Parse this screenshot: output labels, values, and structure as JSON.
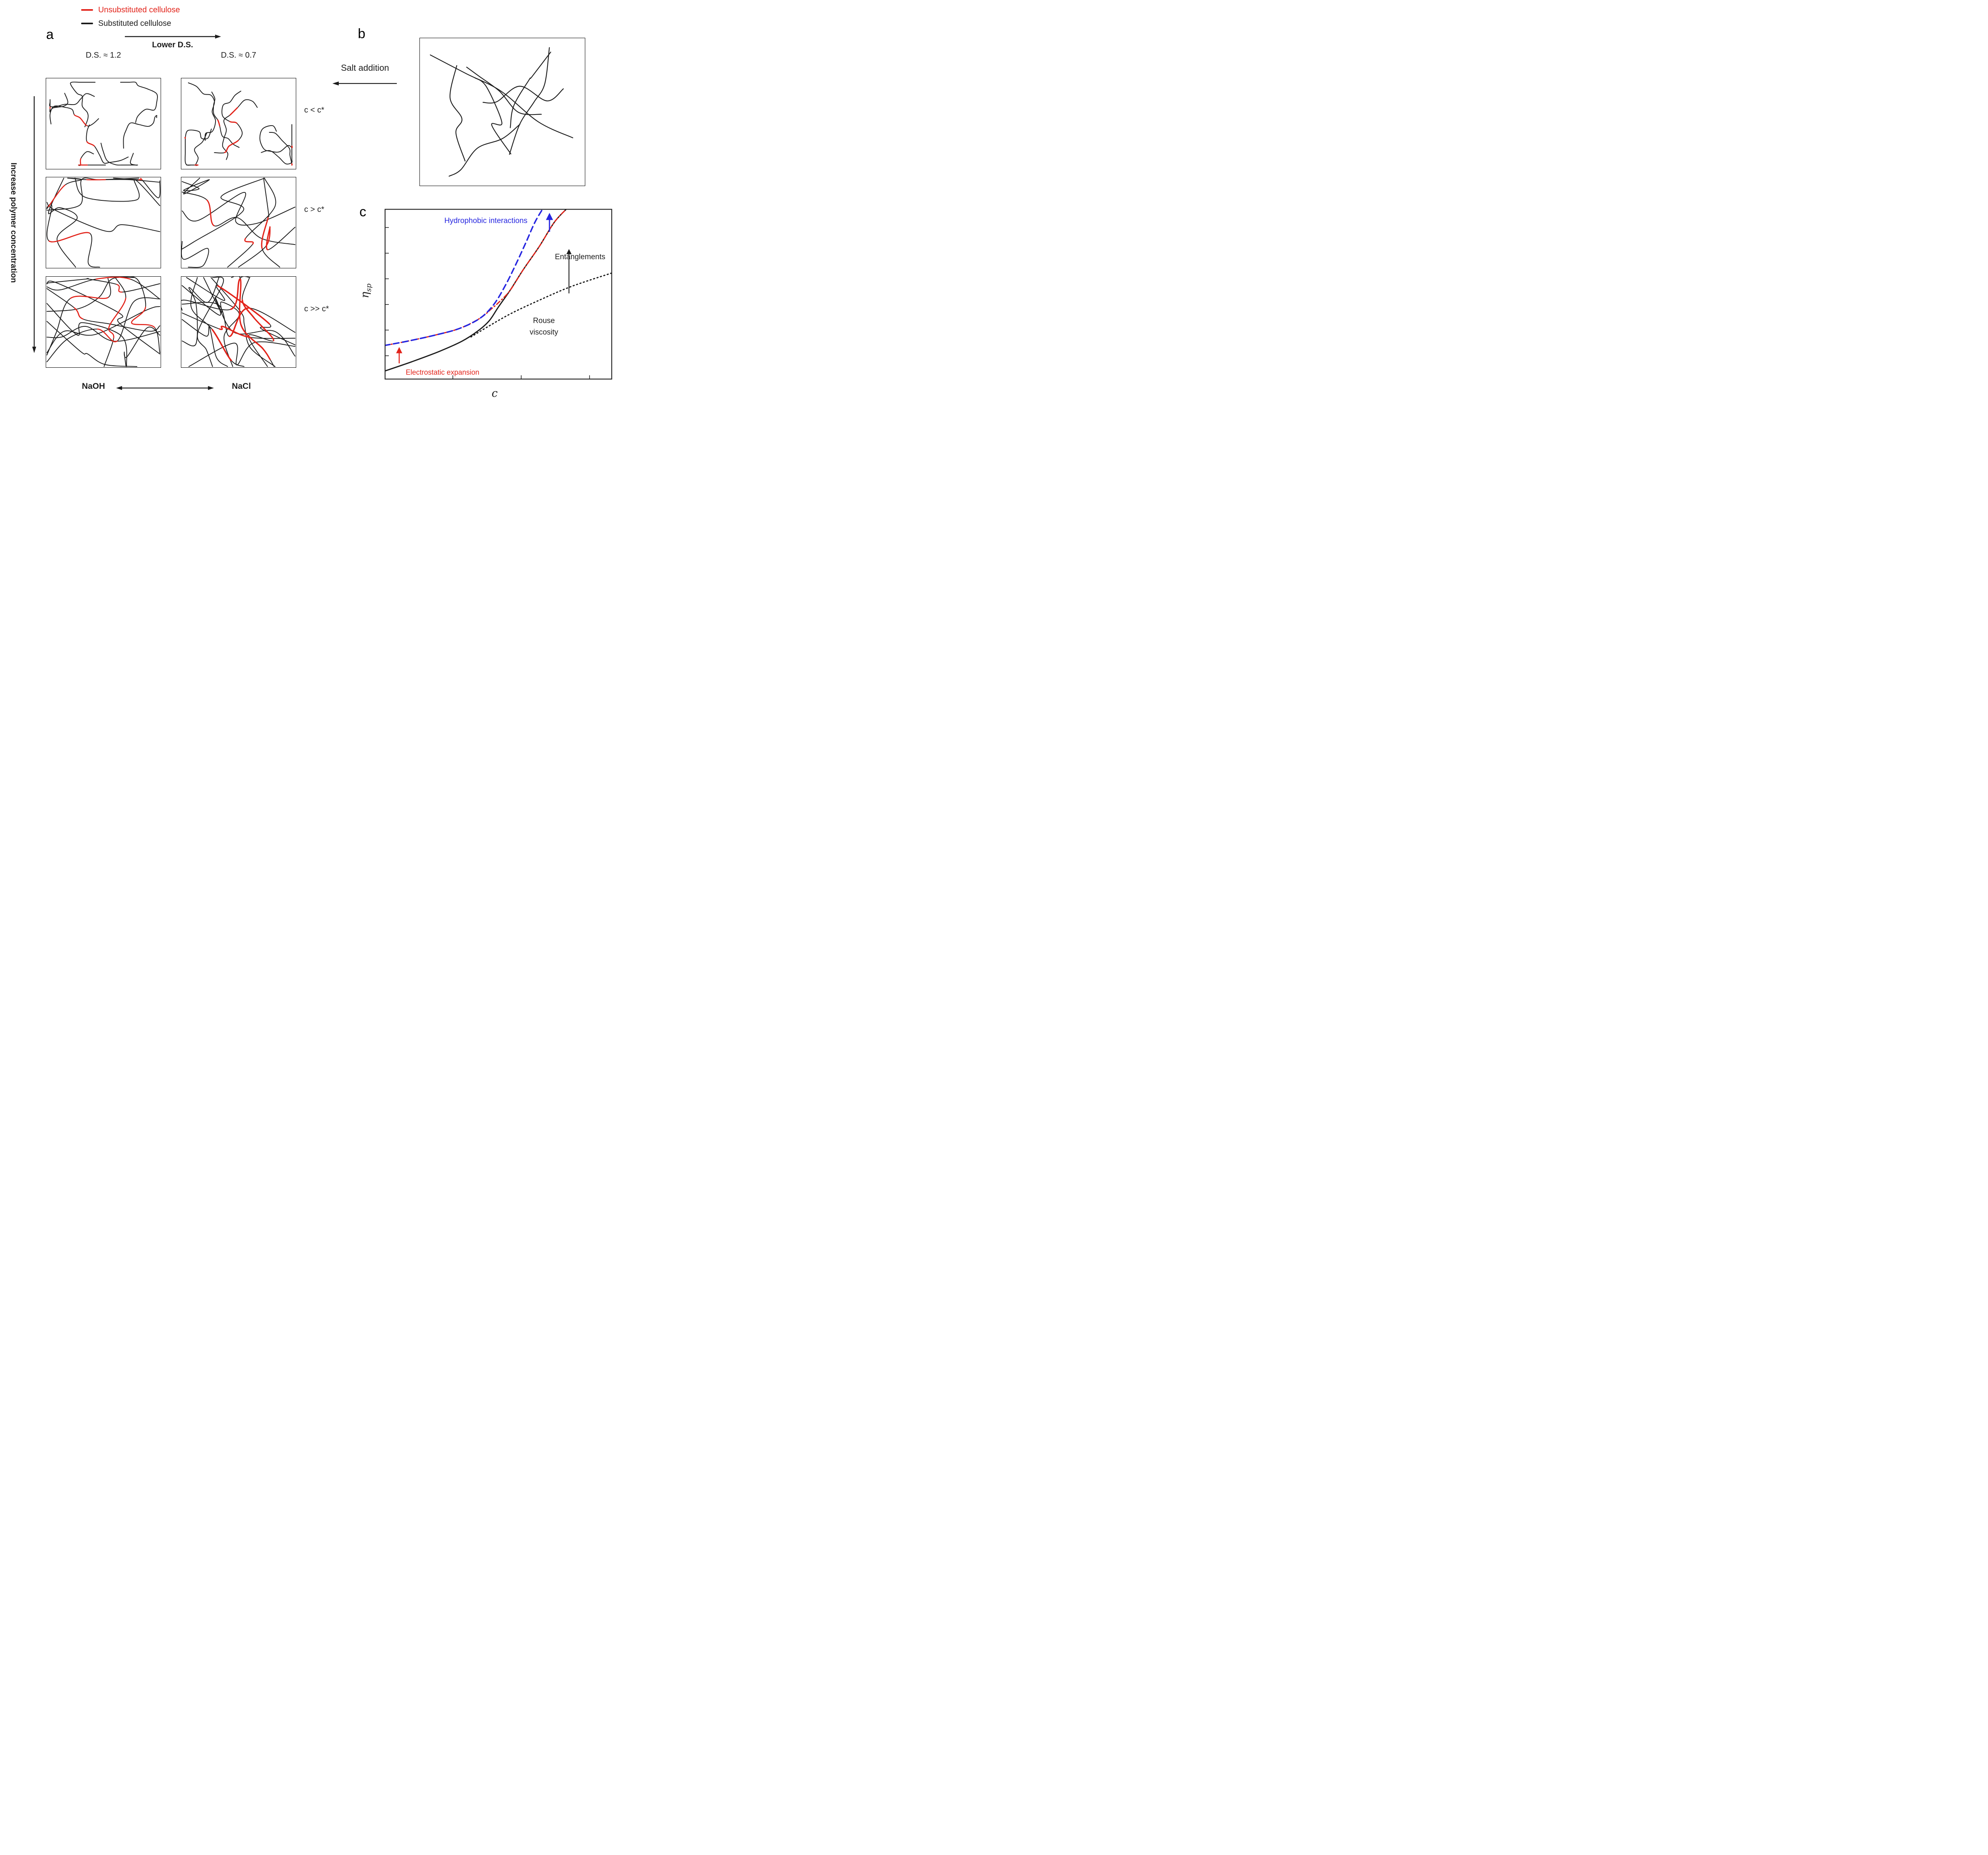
{
  "colors": {
    "red": "#e2231a",
    "black": "#1c1c1c",
    "blue": "#2626e0"
  },
  "legend": {
    "items": [
      {
        "label": "Unsubstituted cellulose",
        "color": "#e2231a"
      },
      {
        "label": "Substituted cellulose",
        "color": "#1c1c1c"
      }
    ]
  },
  "panel_a": {
    "label": "a",
    "arrow_label": "Lower D.S.",
    "col_headers": [
      "D.S. ≈ 1.2",
      "D.S. ≈ 0.7"
    ],
    "row_labels": [
      "c < c*",
      "c > c*",
      "c >> c*"
    ],
    "left_axis_label": "Increase polymer concentration",
    "bottom_labels": [
      "NaOH",
      "NaCl"
    ],
    "boxes": [
      {
        "name": "high-ds-dilute",
        "type": "coils",
        "chains": 9,
        "red_segments": 7,
        "seed": 14
      },
      {
        "name": "low-ds-dilute",
        "type": "coils",
        "chains": 9,
        "red_segments": 9,
        "seed": 83
      },
      {
        "name": "high-ds-semidilute",
        "type": "network",
        "chains": 8,
        "red_segments": 5,
        "seed": 27
      },
      {
        "name": "low-ds-semidilute",
        "type": "network",
        "chains": 8,
        "red_segments": 7,
        "seed": 61
      },
      {
        "name": "high-ds-concentrated",
        "type": "network",
        "chains": 14,
        "red_segments": 10,
        "seed": 45
      },
      {
        "name": "low-ds-concentrated",
        "type": "network",
        "chains": 14,
        "red_segments": 13,
        "seed": 52,
        "cluster": true
      }
    ]
  },
  "panel_b": {
    "label": "b",
    "annotation": "Salt addition",
    "chains": 8,
    "seed": 7
  },
  "panel_c": {
    "label": "c",
    "ylabel": "η",
    "ylabel_sub": "sp",
    "xlabel": "c",
    "labels": {
      "hydrophobic": "Hydrophobic interactions",
      "entanglements": "Entanglements",
      "rouse_1": "Rouse",
      "rouse_2": "viscosity",
      "electrostatic": "Electrostatic expansion"
    }
  },
  "chart_data": {
    "type": "line",
    "title": "",
    "xlabel": "c",
    "ylabel": "η_sp",
    "axes": "schematic, no numeric tick labels; axis ranges normalized 0-1",
    "grid": false,
    "legend_position": "none",
    "annotations": [
      "Hydrophobic interactions",
      "Entanglements",
      "Rouse viscosity",
      "Electrostatic expansion"
    ],
    "series": [
      {
        "name": "Rouse viscosity (dotted extrapolation)",
        "style": "dotted",
        "color": "#1c1c1c",
        "x": [
          0.38,
          0.46,
          0.56,
          0.68,
          0.82,
          1.0
        ],
        "y": [
          0.25,
          0.315,
          0.39,
          0.465,
          0.545,
          0.625
        ]
      },
      {
        "name": "Solid curve (with salt, entangled upturn)",
        "style": "solid",
        "color": "#1c1c1c",
        "x": [
          0,
          0.12,
          0.24,
          0.34,
          0.41,
          0.46,
          0.5,
          0.55,
          0.61,
          0.68,
          0.745,
          0.8
        ],
        "y": [
          0.05,
          0.105,
          0.165,
          0.225,
          0.285,
          0.345,
          0.425,
          0.52,
          0.645,
          0.78,
          0.92,
          1.0
        ]
      },
      {
        "name": "Electrostatic expansion (red dash-dot)",
        "style": "dash-dot",
        "color": "#e2231a",
        "x": [
          0,
          0.1,
          0.22,
          0.33,
          0.42,
          0.47,
          0.5,
          0.55,
          0.61,
          0.68,
          0.745,
          0.8
        ],
        "y": [
          0.2,
          0.225,
          0.26,
          0.3,
          0.36,
          0.415,
          0.45,
          0.52,
          0.645,
          0.78,
          0.92,
          1.0
        ]
      },
      {
        "name": "Hydrophobic interactions (blue dashed)",
        "style": "dashed",
        "color": "#2626e0",
        "x": [
          0,
          0.1,
          0.22,
          0.33,
          0.42,
          0.48,
          0.53,
          0.575,
          0.62,
          0.66,
          0.695
        ],
        "y": [
          0.2,
          0.225,
          0.26,
          0.3,
          0.36,
          0.44,
          0.55,
          0.67,
          0.8,
          0.92,
          1.0
        ]
      }
    ]
  }
}
